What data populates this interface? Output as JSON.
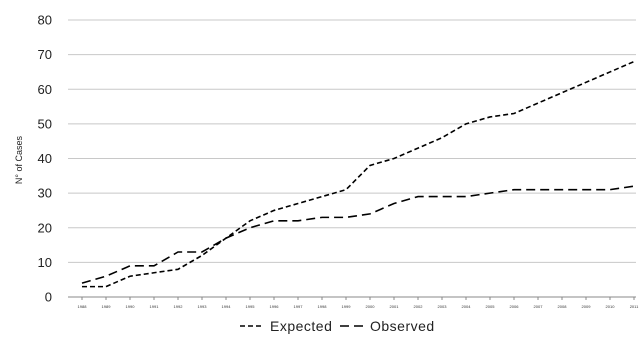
{
  "chart_data": {
    "type": "line",
    "title": "",
    "xlabel": "",
    "ylabel": "N° of Cases",
    "ylim": [
      0,
      80
    ],
    "yticks": [
      "0",
      "10",
      "20",
      "30",
      "40",
      "50",
      "60",
      "70",
      "80"
    ],
    "x": [
      "1988",
      "1989",
      "1990",
      "1991",
      "1992",
      "1993",
      "1994",
      "1995",
      "1996",
      "1997",
      "1998",
      "1999",
      "2000",
      "2001",
      "2002",
      "2003",
      "2004",
      "2005",
      "2006",
      "2007",
      "2008",
      "2009",
      "2010",
      "2011"
    ],
    "grid": true,
    "legend": "bottom",
    "series": [
      {
        "name": "Expected",
        "dash": "short",
        "values": [
          3,
          3,
          6,
          7,
          8,
          12,
          17,
          22,
          25,
          27,
          29,
          31,
          38,
          40,
          43,
          46,
          50,
          52,
          53,
          56,
          59,
          62,
          65,
          68
        ]
      },
      {
        "name": "Observed",
        "dash": "long",
        "values": [
          4,
          6,
          9,
          9,
          13,
          13,
          17,
          20,
          22,
          22,
          23,
          23,
          24,
          27,
          29,
          29,
          29,
          30,
          31,
          31,
          31,
          31,
          31,
          32
        ]
      }
    ]
  }
}
